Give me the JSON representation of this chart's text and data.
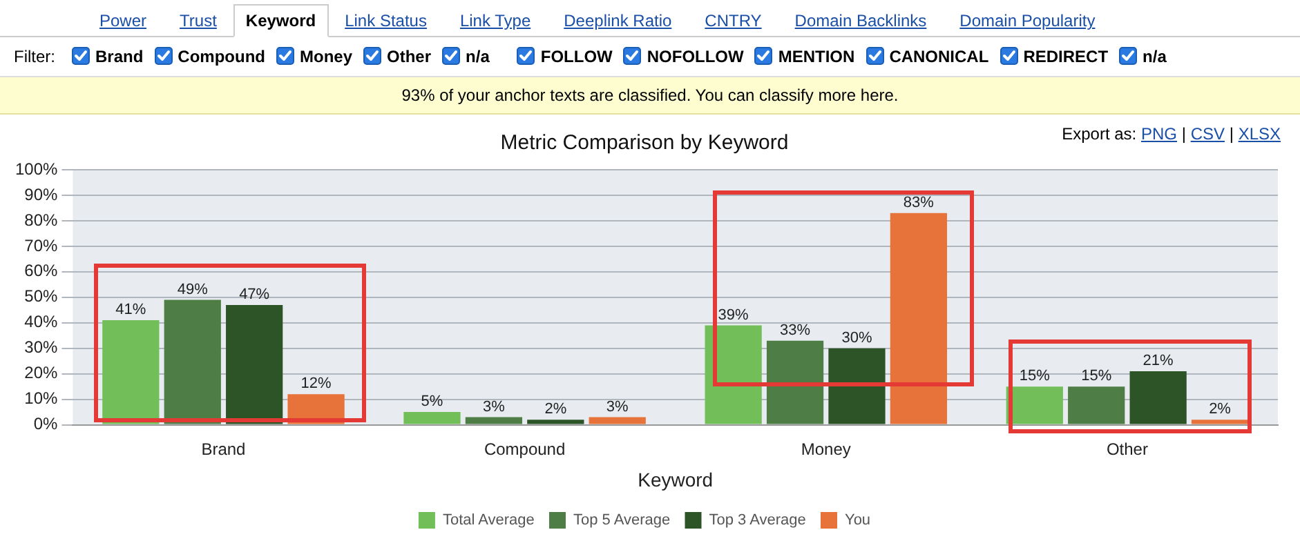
{
  "chart_data": {
    "type": "bar",
    "title": "Metric Comparison by Keyword",
    "xlabel": "Keyword",
    "categories": [
      "Brand",
      "Compound",
      "Money",
      "Other"
    ],
    "series": [
      {
        "name": "Total Average",
        "color": "#72bf5a",
        "values": [
          41,
          5,
          39,
          15
        ],
        "value_labels": [
          "41%",
          "5%",
          "39%",
          "15%"
        ]
      },
      {
        "name": "Top 5 Average",
        "color": "#4e7d45",
        "values": [
          49,
          3,
          33,
          15
        ],
        "value_labels": [
          "49%",
          "3%",
          "33%",
          "15%"
        ]
      },
      {
        "name": "Top 3 Average",
        "color": "#2d5427",
        "values": [
          47,
          2,
          30,
          21
        ],
        "value_labels": [
          "47%",
          "2%",
          "30%",
          "21%"
        ]
      },
      {
        "name": "You",
        "color": "#e8733a",
        "values": [
          12,
          3,
          83,
          2
        ],
        "value_labels": [
          "12%",
          "3%",
          "83%",
          "2%"
        ]
      }
    ],
    "ylim": [
      0,
      100
    ],
    "yticks": [
      {
        "value": 0,
        "label": "0%"
      },
      {
        "value": 10,
        "label": "10%"
      },
      {
        "value": 20,
        "label": "20%"
      },
      {
        "value": 30,
        "label": "30%"
      },
      {
        "value": 40,
        "label": "40%"
      },
      {
        "value": 50,
        "label": "50%"
      },
      {
        "value": 60,
        "label": "60%"
      },
      {
        "value": 70,
        "label": "70%"
      },
      {
        "value": 80,
        "label": "80%"
      },
      {
        "value": 90,
        "label": "90%"
      },
      {
        "value": 100,
        "label": "100%"
      }
    ],
    "grid": "y",
    "legend": "bottom",
    "annotations": [
      "Power",
      "Trust",
      "Keyword",
      "Link Status",
      "Link Type",
      "Deeplink Ratio",
      "CNTRY",
      "Domain Backlinks",
      "Domain Popularity",
      "Filter:",
      "Brand",
      "Compound",
      "Money",
      "Other",
      "n/a",
      "FOLLOW",
      "NOFOLLOW",
      "MENTION",
      "CANONICAL",
      "REDIRECT",
      "n/a",
      "93% of your anchor texts are classified. You can classify more here.",
      "Export as:",
      "PNG",
      "|",
      "CSV",
      "|",
      "XLSX"
    ]
  }
}
